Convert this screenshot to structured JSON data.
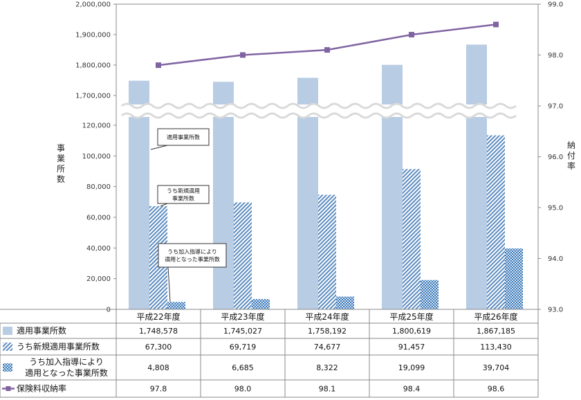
{
  "chart_data": {
    "type": "bar",
    "categories": [
      "平成22年度",
      "平成23年度",
      "平成24年度",
      "平成25年度",
      "平成26年度"
    ],
    "series": [
      {
        "name": "適用事業所数",
        "kind": "bar",
        "pattern": "solid",
        "color": "#b8cce4",
        "values": [
          1748578,
          1745027,
          1758192,
          1800619,
          1867185
        ],
        "labels": [
          "1,748,578",
          "1,745,027",
          "1,758,192",
          "1,800,619",
          "1,867,185"
        ]
      },
      {
        "name": "うち新規適用事業所数",
        "kind": "bar",
        "pattern": "diagonal",
        "color": "#5b8bc0",
        "values": [
          67300,
          69719,
          74677,
          91457,
          113430
        ],
        "labels": [
          "67,300",
          "69,719",
          "74,677",
          "91,457",
          "113,430"
        ]
      },
      {
        "name": "うち加入指導により適用となった事業所数",
        "name_lines": [
          "うち加入指導により",
          "適用となった事業所数"
        ],
        "kind": "bar",
        "pattern": "cross",
        "color": "#3a78b8",
        "values": [
          4808,
          6685,
          8322,
          19099,
          39704
        ],
        "labels": [
          "4,808",
          "6,685",
          "8,322",
          "19,099",
          "39,704"
        ]
      },
      {
        "name": "保険料収納率",
        "kind": "line",
        "axis": "right",
        "color": "#8064a2",
        "values": [
          97.8,
          98.0,
          98.1,
          98.4,
          98.6
        ],
        "labels": [
          "97.8",
          "98.0",
          "98.1",
          "98.4",
          "98.6"
        ]
      }
    ],
    "y_axis_left": {
      "title": [
        "事",
        "業",
        "所",
        "数"
      ],
      "scale": "broken",
      "lower_range": [
        0,
        120000
      ],
      "upper_range": [
        1700000,
        2000000
      ],
      "ticks": [
        "0",
        "20,000",
        "40,000",
        "60,000",
        "80,000",
        "100,000",
        "120,000",
        "1,700,000",
        "1,800,000",
        "1,900,000",
        "2,000,000"
      ]
    },
    "y_axis_right": {
      "title": [
        "納",
        "付",
        "率"
      ],
      "range": [
        93.0,
        99.0
      ],
      "ticks": [
        "93.0",
        "94.0",
        "95.0",
        "96.0",
        "97.0",
        "98.0",
        "99.0"
      ]
    },
    "callouts": [
      {
        "lines": [
          "適用事業所数"
        ]
      },
      {
        "lines": [
          "うち新規適用",
          "事業所数"
        ]
      },
      {
        "lines": [
          "うち加入指導により",
          "適用となった事業所数"
        ]
      }
    ],
    "grid": false,
    "legend": "data-table-below"
  }
}
